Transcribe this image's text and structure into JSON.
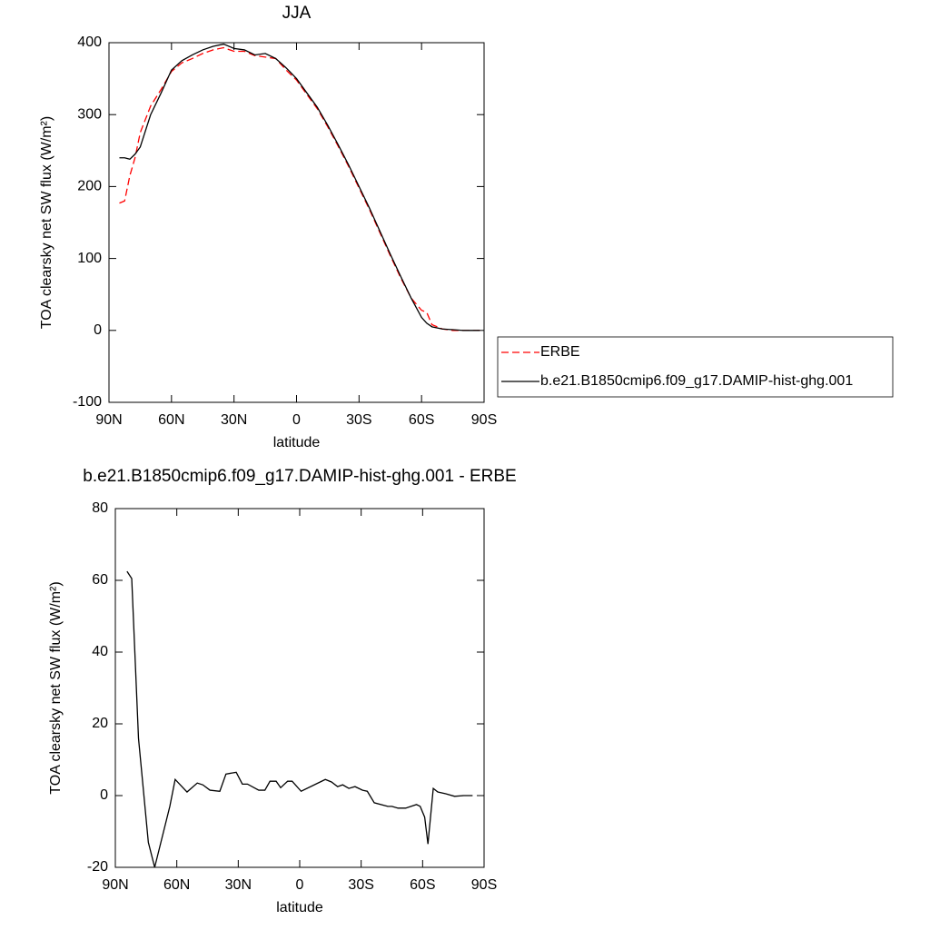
{
  "chart_data": [
    {
      "type": "line",
      "title": "JJA",
      "xlabel": "latitude",
      "ylabel": "TOA clearsky net SW flux (W/m²)",
      "x": [
        85,
        82.5,
        80,
        77.5,
        75,
        70,
        65,
        60,
        55,
        50,
        45,
        40,
        35,
        30,
        25,
        20,
        15,
        10,
        5,
        0,
        -5,
        -10,
        -15,
        -20,
        -25,
        -30,
        -35,
        -40,
        -45,
        -50,
        -55,
        -60,
        -62.5,
        -65,
        -70,
        -75,
        -80,
        -85,
        -88
      ],
      "series": [
        {
          "name": "ERBE",
          "color": "#ff0000",
          "dash": true,
          "values": [
            177,
            180,
            215,
            240,
            275,
            312,
            335,
            360,
            372,
            378,
            385,
            390,
            393,
            388,
            388,
            382,
            380,
            378,
            362,
            348,
            328,
            308,
            283,
            256,
            228,
            198,
            168,
            136,
            104,
            73,
            45,
            28,
            25,
            8,
            2,
            0,
            0,
            0,
            0
          ]
        },
        {
          "name": "b.e21.B1850cmip6.f09_g17.DAMIP-hist-ghg.001",
          "color": "#000000",
          "dash": false,
          "values": [
            240,
            240,
            238,
            245,
            255,
            300,
            330,
            362,
            375,
            383,
            390,
            395,
            398,
            392,
            390,
            383,
            385,
            378,
            365,
            350,
            330,
            310,
            285,
            258,
            230,
            200,
            170,
            138,
            106,
            75,
            45,
            18,
            10,
            5,
            2,
            1,
            0,
            0,
            0
          ]
        }
      ],
      "xlim": [
        90,
        -90
      ],
      "ylim": [
        -100,
        400
      ],
      "xticks": [
        {
          "value": 90,
          "label": "90N"
        },
        {
          "value": 60,
          "label": "60N"
        },
        {
          "value": 30,
          "label": "30N"
        },
        0,
        {
          "value": -30,
          "label": "30S"
        },
        {
          "value": -60,
          "label": "60S"
        },
        {
          "value": -90,
          "label": "90S"
        }
      ],
      "yticks": [
        -100,
        0,
        100,
        200,
        300,
        400
      ],
      "legend": "right"
    },
    {
      "type": "line",
      "title": "b.e21.B1850cmip6.f09_g17.DAMIP-hist-ghg.001 - ERBE",
      "xlabel": "latitude",
      "ylabel": "TOA clearsky net SW flux (W/m²)",
      "x": [
        84.3,
        82,
        78.7,
        73.9,
        70.8,
        63.4,
        60.8,
        55,
        50,
        47.3,
        43.8,
        39,
        36,
        31,
        28,
        25.5,
        20,
        17,
        14.5,
        11.5,
        9.3,
        5.9,
        3.7,
        -0.7,
        -12.5,
        -15.5,
        -18.5,
        -21,
        -24,
        -27,
        -30.7,
        -33,
        -36.4,
        -43,
        -45,
        -48,
        -51.7,
        -57,
        -58.8,
        -61,
        -62.6,
        -65.2,
        -67.4,
        -71.3,
        -75.6,
        -80,
        -84.4
      ],
      "values": [
        62.5,
        60.5,
        16,
        -13,
        -20,
        -3,
        4.5,
        1,
        3.5,
        3,
        1.5,
        1.2,
        6,
        6.5,
        3.2,
        3.2,
        1.5,
        1.5,
        4,
        4,
        2.2,
        4,
        4,
        1.2,
        4.5,
        3.8,
        2.5,
        3,
        2,
        2.5,
        1.5,
        1.2,
        -2,
        -3,
        -3,
        -3.5,
        -3.5,
        -2.5,
        -3,
        -6,
        -13.5,
        2,
        1,
        0.5,
        -0.2,
        0,
        0
      ],
      "color": "#000000",
      "xlim": [
        90,
        -90
      ],
      "ylim": [
        -20,
        80
      ],
      "xticks": [
        {
          "value": 90,
          "label": "90N"
        },
        {
          "value": 60,
          "label": "60N"
        },
        {
          "value": 30,
          "label": "30N"
        },
        0,
        {
          "value": -30,
          "label": "30S"
        },
        {
          "value": -60,
          "label": "60S"
        },
        {
          "value": -90,
          "label": "90S"
        }
      ],
      "yticks": [
        -20,
        0,
        20,
        40,
        60,
        80
      ]
    }
  ]
}
